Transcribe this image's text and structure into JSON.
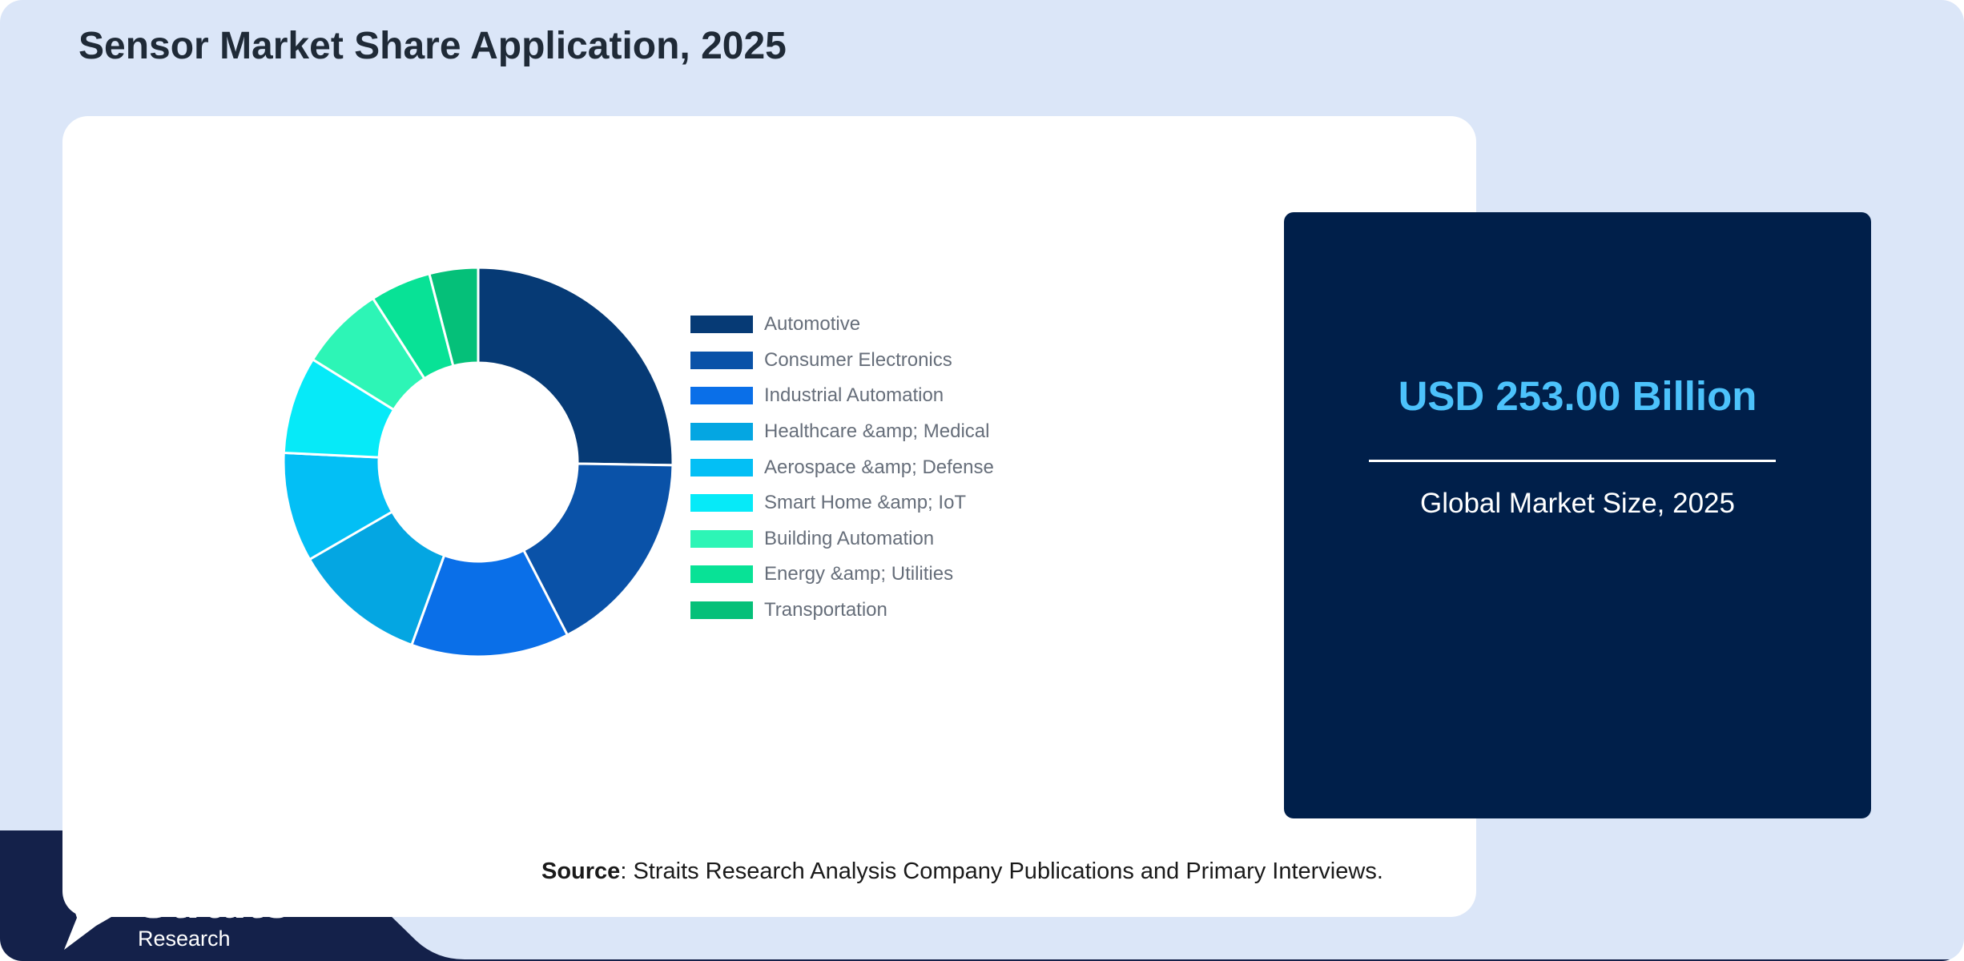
{
  "header": {
    "title": "Sensor Market Share Application, 2025"
  },
  "chart_data": {
    "type": "pie",
    "donut": true,
    "title": "",
    "categories": [
      "Automotive",
      "Consumer Electronics",
      "Industrial Automation",
      "Healthcare &amp; Medical",
      "Aerospace &amp; Defense",
      "Smart Home &amp; IoT",
      "Building Automation",
      "Energy &amp; Utilities",
      "Transportation"
    ],
    "values": [
      25,
      17,
      13,
      11,
      9,
      8,
      7,
      5,
      4
    ],
    "colors": [
      "#063a75",
      "#0a52a8",
      "#0a6fe8",
      "#04a6e2",
      "#03bff5",
      "#06eaf8",
      "#2df5b6",
      "#08e296",
      "#05c079"
    ],
    "legend_position": "right"
  },
  "market": {
    "value": "USD 253.00 Billion",
    "caption": "Global Market Size, 2025",
    "value_color": "#4cc2fb",
    "panel_color": "#001f4a"
  },
  "source": {
    "label": "Source",
    "text": ": Straits Research Analysis Company Publications and Primary Interviews."
  },
  "brand": {
    "name": "Straits",
    "sub": "Research",
    "band_color": "#14214a"
  }
}
